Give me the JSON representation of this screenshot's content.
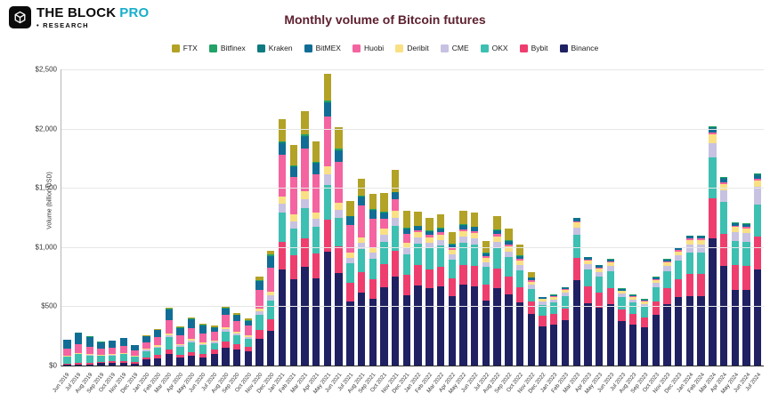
{
  "header": {
    "brand": "THE BLOCK",
    "brand_suffix": "PRO",
    "sub": "• RESEARCH"
  },
  "chart_data": {
    "type": "bar",
    "stacked": true,
    "title": "Monthly volume of Bitcoin futures",
    "ylabel": "Volume (billion USD)",
    "ylim": [
      0,
      2500
    ],
    "ytick_values": [
      0,
      500,
      1000,
      1500,
      2000,
      2500
    ],
    "yticks": [
      "$0",
      "$500",
      "$1,000",
      "$1,500",
      "$2,000",
      "$2,500"
    ],
    "grid": true,
    "legend_position": "top",
    "categories": [
      "Jun 2019",
      "Jul 2019",
      "Aug 2019",
      "Sep 2019",
      "Oct 2019",
      "Nov 2019",
      "Dec 2019",
      "Jan 2020",
      "Feb 2020",
      "Mar 2020",
      "Apr 2020",
      "May 2020",
      "Jun 2020",
      "Jul 2020",
      "Aug 2020",
      "Sep 2020",
      "Oct 2020",
      "Nov 2020",
      "Dec 2020",
      "Jan 2021",
      "Feb 2021",
      "Mar 2021",
      "Apr 2021",
      "May 2021",
      "Jun 2021",
      "Jul 2021",
      "Aug 2021",
      "Sep 2021",
      "Oct 2021",
      "Nov 2021",
      "Dec 2021",
      "Jan 2022",
      "Feb 2022",
      "Mar 2022",
      "Apr 2022",
      "May 2022",
      "Jun 2022",
      "Jul 2022",
      "Aug 2022",
      "Sep 2022",
      "Oct 2022",
      "Nov 2022",
      "Dec 2022",
      "Jan 2023",
      "Feb 2023",
      "Mar 2023",
      "Apr 2023",
      "May 2023",
      "Jun 2023",
      "Jul 2023",
      "Aug 2023",
      "Sep 2023",
      "Oct 2023",
      "Nov 2023",
      "Dec 2023",
      "Jan 2024",
      "Feb 2024",
      "Mar 2024",
      "Apr 2024",
      "May 2024",
      "Jun 2024",
      "Jul 2024"
    ],
    "series": [
      {
        "name": "FTX",
        "color": "#b2a226",
        "values": [
          0,
          0,
          0,
          0,
          0,
          0,
          0,
          5,
          6,
          10,
          7,
          8,
          7,
          12,
          18,
          16,
          14,
          26,
          34,
          187,
          167,
          193,
          170,
          221,
          181,
          125,
          142,
          130,
          161,
          182,
          144,
          117,
          112,
          115,
          102,
          118,
          116,
          95,
          113,
          104,
          92,
          47,
          0,
          0,
          0,
          0,
          0,
          0,
          0,
          0,
          0,
          0,
          0,
          0,
          0,
          0,
          0,
          0,
          0,
          0,
          0,
          0
        ]
      },
      {
        "name": "Bitfinex",
        "color": "#21a267",
        "values": [
          2,
          3,
          2,
          2,
          2,
          2,
          2,
          4,
          5,
          7,
          5,
          6,
          5,
          3,
          5,
          4,
          4,
          8,
          10,
          10,
          10,
          11,
          10,
          13,
          11,
          7,
          8,
          7,
          7,
          7,
          7,
          7,
          6,
          7,
          5,
          7,
          6,
          5,
          7,
          7,
          5,
          3,
          2,
          3,
          2,
          5,
          5,
          3,
          4,
          3,
          3,
          2,
          3,
          4,
          5,
          5,
          5,
          10,
          8,
          6,
          6,
          8
        ]
      },
      {
        "name": "Kraken",
        "color": "#0e7a80",
        "values": [
          2,
          3,
          2,
          1,
          1,
          1,
          1,
          1,
          2,
          2,
          2,
          2,
          2,
          2,
          3,
          2,
          2,
          4,
          5,
          10,
          9,
          11,
          9,
          12,
          10,
          6,
          8,
          7,
          7,
          7,
          7,
          6,
          6,
          6,
          5,
          7,
          6,
          5,
          7,
          6,
          5,
          3,
          3,
          3,
          3,
          6,
          5,
          4,
          5,
          3,
          3,
          3,
          4,
          5,
          5,
          6,
          6,
          11,
          8,
          6,
          6,
          9
        ]
      },
      {
        "name": "BitMEX",
        "color": "#116d96",
        "values": [
          73,
          92,
          81,
          54,
          57,
          63,
          47,
          46,
          56,
          88,
          59,
          73,
          63,
          34,
          51,
          45,
          40,
          75,
          97,
          94,
          84,
          96,
          85,
          111,
          90,
          63,
          71,
          65,
          44,
          50,
          39,
          26,
          25,
          26,
          23,
          26,
          26,
          21,
          25,
          23,
          20,
          16,
          9,
          9,
          10,
          19,
          14,
          13,
          13,
          10,
          9,
          8,
          11,
          13,
          15,
          16,
          16,
          30,
          24,
          18,
          18,
          24
        ]
      },
      {
        "name": "Huobi",
        "color": "#f464a0",
        "values": [
          57,
          73,
          64,
          52,
          55,
          61,
          45,
          59,
          71,
          113,
          76,
          93,
          81,
          70,
          106,
          93,
          83,
          158,
          204,
          354,
          316,
          365,
          321,
          418,
          342,
          236,
          269,
          247,
          88,
          99,
          79,
          19,
          19,
          19,
          17,
          20,
          19,
          15,
          19,
          17,
          15,
          12,
          6,
          6,
          7,
          13,
          9,
          9,
          9,
          6,
          6,
          6,
          8,
          9,
          10,
          11,
          11,
          20,
          16,
          12,
          12,
          16
        ]
      },
      {
        "name": "Deribit",
        "color": "#fae084",
        "values": [
          7,
          8,
          7,
          6,
          6,
          7,
          5,
          8,
          9,
          15,
          10,
          12,
          11,
          10,
          15,
          13,
          12,
          23,
          29,
          62,
          56,
          64,
          57,
          74,
          60,
          42,
          47,
          43,
          51,
          58,
          46,
          46,
          44,
          45,
          40,
          46,
          45,
          37,
          44,
          41,
          36,
          28,
          20,
          21,
          23,
          44,
          32,
          30,
          31,
          23,
          21,
          20,
          26,
          31,
          35,
          39,
          39,
          71,
          56,
          42,
          42,
          57
        ]
      },
      {
        "name": "CME",
        "color": "#c7c2e2",
        "values": [
          4,
          6,
          5,
          3,
          3,
          4,
          3,
          8,
          9,
          15,
          10,
          12,
          10,
          13,
          20,
          18,
          16,
          30,
          39,
          73,
          65,
          75,
          66,
          86,
          70,
          49,
          55,
          51,
          58,
          66,
          52,
          52,
          50,
          51,
          45,
          52,
          52,
          42,
          50,
          46,
          41,
          32,
          26,
          27,
          30,
          56,
          41,
          38,
          41,
          29,
          27,
          25,
          34,
          41,
          45,
          66,
          66,
          121,
          95,
          73,
          72,
          146
        ]
      },
      {
        "name": "OKX",
        "color": "#3dbfb1",
        "values": [
          57,
          73,
          64,
          50,
          52,
          59,
          44,
          53,
          65,
          103,
          69,
          85,
          74,
          57,
          86,
          76,
          67,
          128,
          165,
          250,
          223,
          257,
          227,
          295,
          241,
          167,
          190,
          174,
          190,
          215,
          170,
          182,
          175,
          179,
          158,
          183,
          181,
          147,
          176,
          162,
          143,
          111,
          93,
          96,
          106,
          200,
          147,
          136,
          144,
          104,
          96,
          90,
          120,
          144,
          160,
          187,
          187,
          343,
          270,
          206,
          204,
          275
        ]
      },
      {
        "name": "Bybit",
        "color": "#ee3e6e",
        "values": [
          11,
          14,
          12,
          12,
          13,
          14,
          11,
          20,
          25,
          39,
          26,
          32,
          28,
          34,
          51,
          45,
          40,
          75,
          97,
          229,
          205,
          236,
          208,
          271,
          221,
          153,
          174,
          160,
          190,
          215,
          170,
          169,
          163,
          166,
          147,
          170,
          168,
          137,
          164,
          151,
          133,
          103,
          87,
          90,
          99,
          188,
          138,
          128,
          135,
          98,
          90,
          84,
          113,
          135,
          150,
          187,
          187,
          343,
          270,
          206,
          204,
          275
        ]
      },
      {
        "name": "Binance",
        "color": "#1f2163",
        "values": [
          7,
          8,
          8,
          20,
          21,
          24,
          17,
          51,
          62,
          98,
          66,
          82,
          69,
          100,
          150,
          133,
          117,
          223,
          290,
          811,
          725,
          837,
          737,
          959,
          784,
          542,
          616,
          566,
          664,
          751,
          596,
          676,
          650,
          666,
          588,
          681,
          671,
          546,
          655,
          603,
          530,
          435,
          334,
          345,
          380,
          719,
          529,
          489,
          518,
          374,
          345,
          322,
          431,
          518,
          575,
          583,
          583,
          1071,
          843,
          641,
          636,
          810
        ]
      }
    ]
  }
}
